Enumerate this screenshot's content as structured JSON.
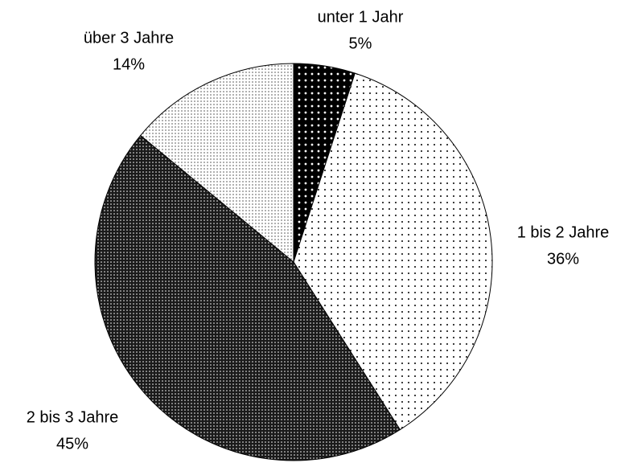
{
  "chart_data": {
    "type": "pie",
    "categories": [
      "unter 1 Jahr",
      "1 bis 2 Jahre",
      "2 bis 3 Jahre",
      "über 3 Jahre"
    ],
    "values": [
      5,
      36,
      45,
      14
    ],
    "value_labels": [
      "5%",
      "36%",
      "45%",
      "14%"
    ],
    "colors": [
      "#000000",
      "#ffffff",
      "#1a1a1a",
      "#ffffff"
    ]
  }
}
